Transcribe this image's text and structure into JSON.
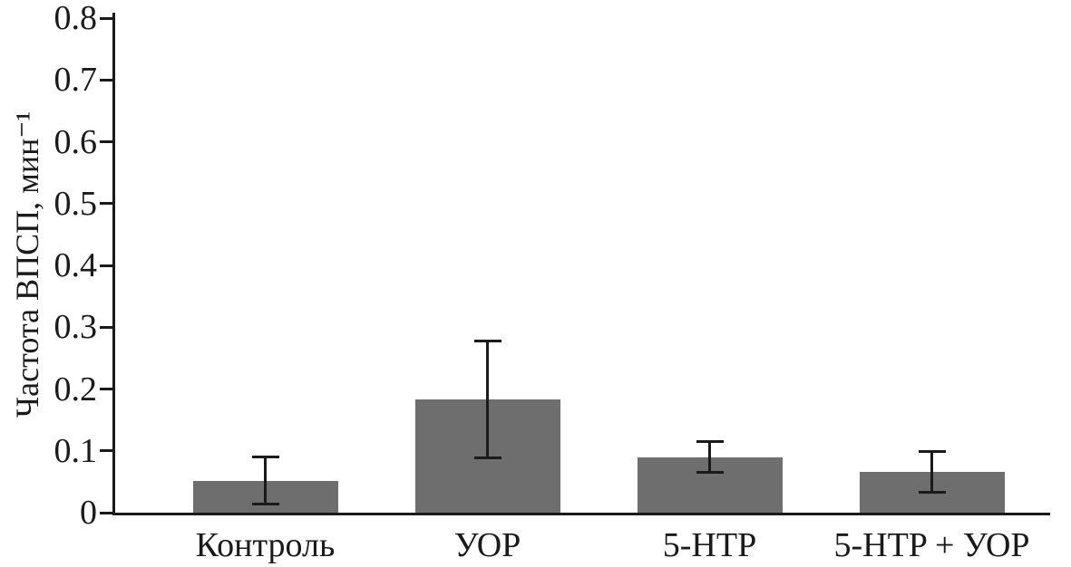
{
  "chart_data": {
    "type": "bar",
    "categories": [
      "Контроль",
      "УОР",
      "5-HTP",
      "5-HTP + УОР"
    ],
    "values": [
      0.052,
      0.183,
      0.09,
      0.066
    ],
    "errors": [
      0.038,
      0.095,
      0.025,
      0.033
    ],
    "title": "",
    "xlabel": "",
    "ylabel": "Частота ВПСП, мин⁻¹",
    "ylim": [
      0,
      0.8
    ],
    "ytick_step": 0.1,
    "grid": false,
    "legend": false,
    "bar_color": "#6e6e6e",
    "axis_color": "#1a1a1a",
    "background_color": "#ffffff"
  }
}
